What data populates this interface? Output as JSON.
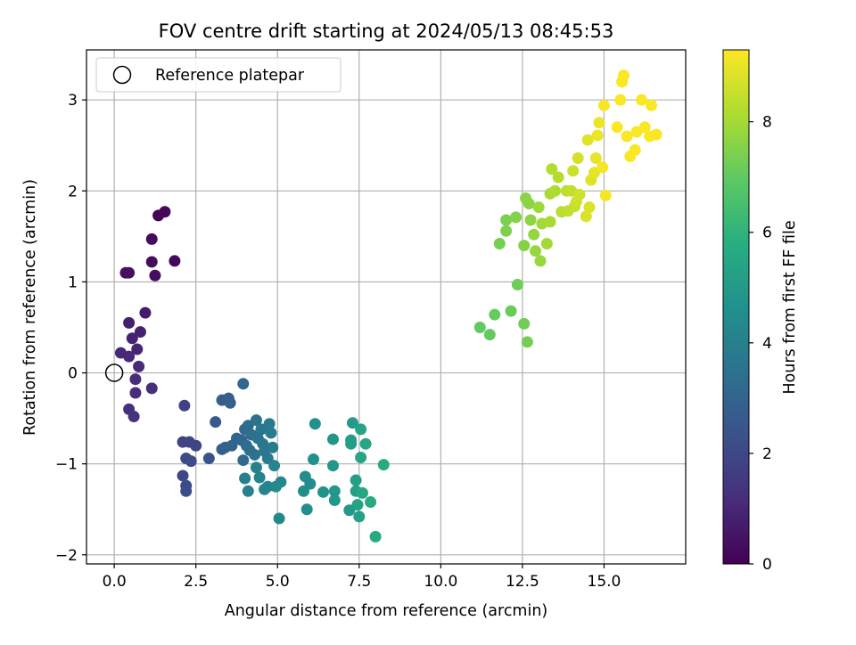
{
  "chart_data": {
    "type": "scatter",
    "title": "FOV centre drift starting at 2024/05/13 08:45:53",
    "xlabel": "Angular distance from reference (arcmin)",
    "ylabel": "Rotation from reference (arcmin)",
    "xlim": [
      -0.85,
      17.5
    ],
    "ylim": [
      -2.1,
      3.55
    ],
    "xticks": [
      0.0,
      2.5,
      5.0,
      7.5,
      10.0,
      12.5,
      15.0
    ],
    "xtick_labels": [
      "0.0",
      "2.5",
      "5.0",
      "7.5",
      "10.0",
      "12.5",
      "15.0"
    ],
    "yticks": [
      -2,
      -1,
      0,
      1,
      2,
      3
    ],
    "ytick_labels": [
      "−2",
      "−1",
      "0",
      "1",
      "2",
      "3"
    ],
    "grid": true,
    "legend": {
      "placement": "top-left",
      "entries": [
        "Reference platepar"
      ]
    },
    "reference_point": {
      "x": 0.0,
      "y": 0.0,
      "label": "Reference platepar"
    },
    "colorbar": {
      "label": "Hours from first FF file",
      "colormap": "viridis",
      "range": [
        0,
        9.3
      ],
      "ticks": [
        0,
        2,
        4,
        6,
        8
      ],
      "tick_labels": [
        "0",
        "2",
        "4",
        "6",
        "8"
      ]
    },
    "points": [
      [
        1.35,
        1.73,
        0.1
      ],
      [
        1.55,
        1.77,
        0.15
      ],
      [
        1.85,
        1.23,
        0.2
      ],
      [
        1.15,
        1.47,
        0.25
      ],
      [
        1.15,
        1.22,
        0.3
      ],
      [
        1.25,
        1.07,
        0.35
      ],
      [
        0.35,
        1.1,
        0.4
      ],
      [
        0.45,
        1.1,
        0.45
      ],
      [
        0.95,
        0.66,
        0.7
      ],
      [
        0.45,
        0.55,
        0.8
      ],
      [
        0.8,
        0.45,
        0.85
      ],
      [
        0.55,
        0.38,
        0.9
      ],
      [
        0.7,
        0.26,
        0.95
      ],
      [
        0.2,
        0.22,
        1.0
      ],
      [
        0.45,
        0.18,
        1.05
      ],
      [
        0.75,
        0.07,
        1.1
      ],
      [
        0.65,
        -0.07,
        1.15
      ],
      [
        0.65,
        -0.22,
        1.2
      ],
      [
        1.15,
        -0.17,
        1.25
      ],
      [
        0.45,
        -0.4,
        1.3
      ],
      [
        0.6,
        -0.48,
        1.35
      ],
      [
        2.15,
        -0.36,
        1.8
      ],
      [
        2.1,
        -0.76,
        1.85
      ],
      [
        2.3,
        -0.76,
        1.9
      ],
      [
        2.5,
        -0.8,
        1.95
      ],
      [
        2.1,
        -1.13,
        2.0
      ],
      [
        2.2,
        -0.94,
        2.05
      ],
      [
        2.35,
        -0.97,
        2.1
      ],
      [
        2.2,
        -1.24,
        2.15
      ],
      [
        2.2,
        -1.3,
        2.2
      ],
      [
        2.9,
        -0.94,
        2.4
      ],
      [
        3.1,
        -0.54,
        2.6
      ],
      [
        3.3,
        -0.3,
        2.7
      ],
      [
        3.5,
        -0.28,
        2.75
      ],
      [
        3.55,
        -0.33,
        2.8
      ],
      [
        3.3,
        -0.84,
        2.85
      ],
      [
        3.4,
        -0.82,
        2.9
      ],
      [
        3.6,
        -0.8,
        2.95
      ],
      [
        3.75,
        -0.72,
        3.0
      ],
      [
        3.9,
        -0.74,
        3.05
      ],
      [
        3.95,
        -0.12,
        3.1
      ],
      [
        4.0,
        -0.62,
        3.15
      ],
      [
        3.95,
        -0.96,
        3.2
      ],
      [
        4.1,
        -0.58,
        3.25
      ],
      [
        4.05,
        -0.8,
        3.3
      ],
      [
        4.2,
        -0.68,
        3.35
      ],
      [
        4.15,
        -0.85,
        3.4
      ],
      [
        4.3,
        -0.9,
        3.45
      ],
      [
        4.35,
        -0.52,
        3.5
      ],
      [
        4.4,
        -0.72,
        3.55
      ],
      [
        4.55,
        -0.78,
        3.6
      ],
      [
        4.5,
        -0.62,
        3.65
      ],
      [
        4.6,
        -0.86,
        3.7
      ],
      [
        4.7,
        -0.94,
        3.75
      ],
      [
        4.75,
        -0.56,
        3.8
      ],
      [
        4.8,
        -0.66,
        3.85
      ],
      [
        4.85,
        -0.82,
        3.9
      ],
      [
        4.0,
        -1.16,
        3.95
      ],
      [
        4.1,
        -1.3,
        4.0
      ],
      [
        4.35,
        -1.04,
        4.05
      ],
      [
        4.45,
        -1.15,
        4.1
      ],
      [
        4.6,
        -1.28,
        4.15
      ],
      [
        4.7,
        -1.25,
        4.2
      ],
      [
        4.9,
        -1.02,
        4.25
      ],
      [
        4.95,
        -1.25,
        4.3
      ],
      [
        5.1,
        -1.2,
        4.35
      ],
      [
        5.05,
        -1.6,
        4.4
      ],
      [
        5.85,
        -1.14,
        4.45
      ],
      [
        6.0,
        -1.22,
        4.5
      ],
      [
        5.8,
        -1.3,
        4.55
      ],
      [
        5.9,
        -1.5,
        4.6
      ],
      [
        6.1,
        -0.95,
        4.65
      ],
      [
        6.15,
        -0.56,
        4.7
      ],
      [
        6.4,
        -1.31,
        4.75
      ],
      [
        6.7,
        -0.73,
        4.8
      ],
      [
        6.7,
        -1.02,
        4.85
      ],
      [
        6.75,
        -1.3,
        4.9
      ],
      [
        6.75,
        -1.4,
        4.95
      ],
      [
        7.2,
        -1.51,
        5.0
      ],
      [
        7.3,
        -0.55,
        5.05
      ],
      [
        7.25,
        -0.74,
        5.1
      ],
      [
        7.25,
        -0.78,
        5.15
      ],
      [
        7.4,
        -1.18,
        5.2
      ],
      [
        7.4,
        -1.3,
        5.25
      ],
      [
        7.45,
        -1.45,
        5.3
      ],
      [
        7.5,
        -1.58,
        5.35
      ],
      [
        7.55,
        -0.93,
        5.4
      ],
      [
        7.55,
        -0.62,
        5.45
      ],
      [
        7.7,
        -0.78,
        5.5
      ],
      [
        7.6,
        -1.32,
        5.55
      ],
      [
        7.85,
        -1.42,
        5.6
      ],
      [
        8.0,
        -1.8,
        5.65
      ],
      [
        8.25,
        -1.01,
        5.7
      ],
      [
        11.2,
        0.5,
        7.0
      ],
      [
        11.5,
        0.42,
        7.05
      ],
      [
        11.65,
        0.64,
        7.1
      ],
      [
        12.15,
        0.68,
        7.15
      ],
      [
        12.35,
        0.97,
        7.2
      ],
      [
        12.55,
        0.54,
        7.25
      ],
      [
        12.65,
        0.34,
        7.3
      ],
      [
        11.8,
        1.42,
        7.35
      ],
      [
        12.0,
        1.68,
        7.4
      ],
      [
        12.0,
        1.56,
        7.45
      ],
      [
        12.3,
        1.71,
        7.5
      ],
      [
        12.55,
        1.4,
        7.55
      ],
      [
        12.6,
        1.92,
        7.6
      ],
      [
        12.7,
        1.86,
        7.65
      ],
      [
        12.75,
        1.68,
        7.7
      ],
      [
        12.85,
        1.52,
        7.75
      ],
      [
        12.9,
        1.34,
        7.8
      ],
      [
        13.05,
        1.23,
        7.85
      ],
      [
        13.0,
        1.82,
        7.9
      ],
      [
        13.1,
        1.64,
        7.95
      ],
      [
        13.25,
        1.42,
        8.0
      ],
      [
        13.35,
        1.66,
        8.05
      ],
      [
        13.35,
        1.97,
        8.1
      ],
      [
        13.5,
        2.0,
        8.15
      ],
      [
        13.4,
        2.24,
        8.2
      ],
      [
        13.6,
        2.15,
        8.25
      ],
      [
        13.7,
        1.77,
        8.3
      ],
      [
        13.85,
        2.0,
        8.35
      ],
      [
        13.9,
        1.78,
        8.4
      ],
      [
        14.0,
        2.0,
        8.45
      ],
      [
        14.1,
        1.83,
        8.5
      ],
      [
        14.05,
        2.22,
        8.55
      ],
      [
        14.15,
        1.88,
        8.6
      ],
      [
        14.25,
        1.96,
        8.65
      ],
      [
        14.2,
        2.36,
        8.7
      ],
      [
        14.45,
        1.72,
        8.75
      ],
      [
        14.55,
        1.82,
        8.8
      ],
      [
        14.6,
        2.12,
        8.85
      ],
      [
        14.5,
        2.56,
        8.9
      ],
      [
        14.7,
        2.2,
        8.95
      ],
      [
        14.75,
        2.36,
        9.0
      ],
      [
        14.8,
        2.61,
        9.05
      ],
      [
        14.85,
        2.75,
        9.1
      ],
      [
        14.95,
        2.26,
        9.15
      ],
      [
        15.05,
        1.95,
        9.2
      ],
      [
        15.0,
        2.94,
        9.2
      ],
      [
        15.4,
        2.7,
        9.25
      ],
      [
        15.5,
        3.0,
        9.25
      ],
      [
        15.55,
        3.2,
        9.25
      ],
      [
        15.6,
        3.27,
        9.25
      ],
      [
        15.7,
        2.6,
        9.25
      ],
      [
        15.8,
        2.38,
        9.25
      ],
      [
        15.95,
        2.45,
        9.25
      ],
      [
        16.0,
        2.65,
        9.25
      ],
      [
        16.15,
        3.0,
        9.25
      ],
      [
        16.25,
        2.7,
        9.25
      ],
      [
        16.4,
        2.6,
        9.25
      ],
      [
        16.45,
        2.94,
        9.25
      ],
      [
        16.6,
        2.62,
        9.25
      ]
    ]
  }
}
